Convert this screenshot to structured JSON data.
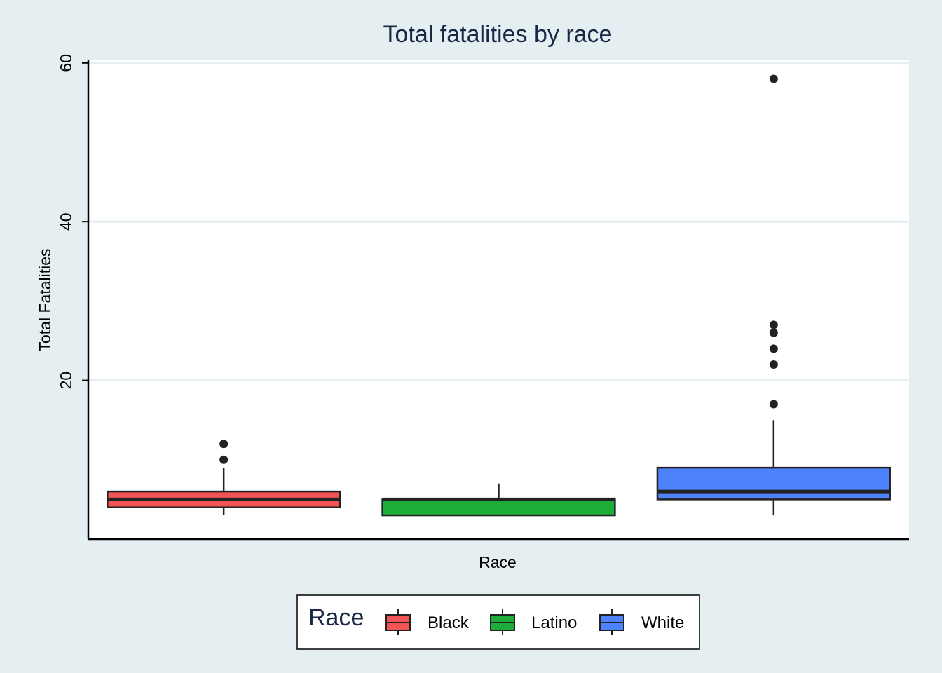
{
  "chart_data": {
    "type": "boxplot",
    "title": "Total fatalities by race",
    "xlabel": "Race",
    "ylabel": "Total Fatalities",
    "ylim": [
      0,
      60.5
    ],
    "yticks": [
      20,
      40,
      60
    ],
    "ytick_labels": [
      "20",
      "40",
      "60"
    ],
    "grid": "horizontal",
    "legend": {
      "title": "Race",
      "placement": "bottom",
      "entries": [
        "Black",
        "Latino",
        "White"
      ]
    },
    "categories": [
      "Black",
      "Latino",
      "White"
    ],
    "series": [
      {
        "name": "Black",
        "color": "#f05454",
        "whisker_low": 3,
        "q1": 4,
        "median": 5,
        "q3": 6,
        "whisker_high": 9,
        "outliers": [
          10,
          12
        ]
      },
      {
        "name": "Latino",
        "color": "#1ead3a",
        "whisker_low": 3,
        "q1": 3,
        "median": 5,
        "q3": 5,
        "whisker_high": 7,
        "outliers": []
      },
      {
        "name": "White",
        "color": "#4d82fd",
        "whisker_low": 3,
        "q1": 5,
        "median": 6,
        "q3": 9,
        "whisker_high": 15,
        "outliers": [
          17,
          22,
          24,
          26,
          27,
          58
        ]
      }
    ]
  }
}
